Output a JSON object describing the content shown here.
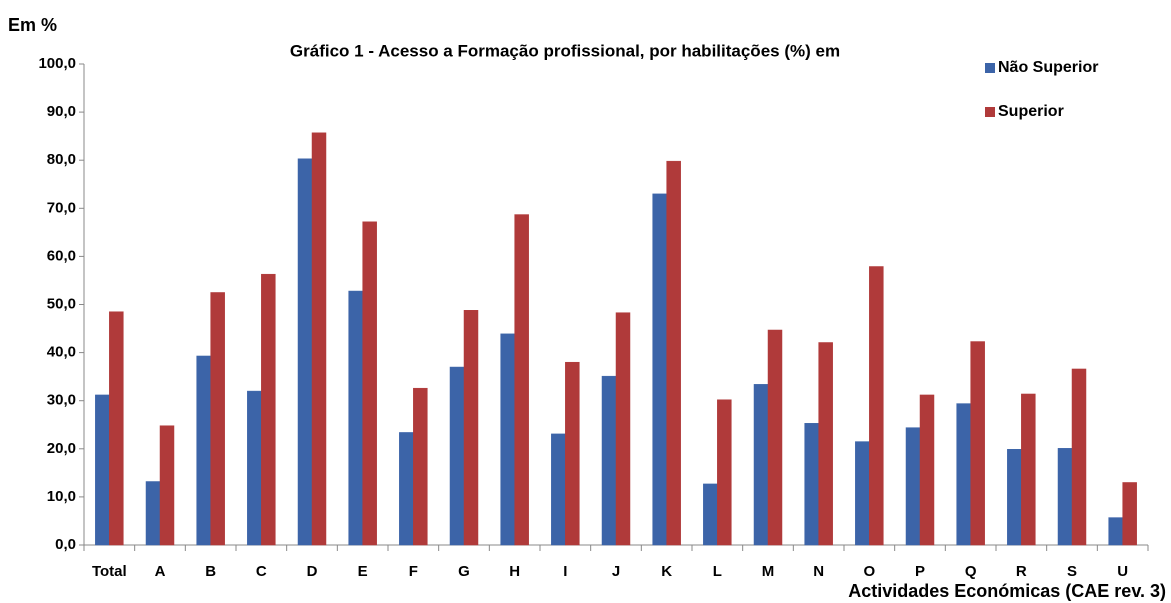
{
  "chart_data": {
    "type": "bar",
    "title": "Gráfico 1 - Acesso a Formação profissional, por habilitações (%) em",
    "y_label": "Em %",
    "x_label": "Actividades Económicas (CAE rev. 3)",
    "categories": [
      "Total",
      "A",
      "B",
      "C",
      "D",
      "E",
      "F",
      "G",
      "H",
      "I",
      "J",
      "K",
      "L",
      "M",
      "N",
      "O",
      "P",
      "Q",
      "R",
      "S",
      "U"
    ],
    "series": [
      {
        "name": "Não Superior",
        "color": "#3c64a8",
        "values": [
          31.2,
          13.2,
          39.3,
          32.0,
          80.3,
          52.8,
          23.4,
          37.0,
          43.9,
          23.1,
          35.1,
          73.0,
          12.7,
          33.4,
          25.3,
          21.5,
          24.4,
          29.4,
          19.9,
          20.1,
          5.7
        ]
      },
      {
        "name": "Superior",
        "color": "#b03a3a",
        "values": [
          48.5,
          24.8,
          52.5,
          56.3,
          85.7,
          67.2,
          32.6,
          48.8,
          68.7,
          38.0,
          48.3,
          79.8,
          30.2,
          44.7,
          42.1,
          57.9,
          31.2,
          42.3,
          31.4,
          36.6,
          13.0
        ]
      }
    ],
    "ylim": [
      0,
      100
    ],
    "yticks": [
      {
        "value": 0,
        "label": "0,0"
      },
      {
        "value": 10,
        "label": "10,0"
      },
      {
        "value": 20,
        "label": "20,0"
      },
      {
        "value": 30,
        "label": "30,0"
      },
      {
        "value": 40,
        "label": "40,0"
      },
      {
        "value": 50,
        "label": "50,0"
      },
      {
        "value": 60,
        "label": "60,0"
      },
      {
        "value": 70,
        "label": "70,0"
      },
      {
        "value": 80,
        "label": "80,0"
      },
      {
        "value": 90,
        "label": "90,0"
      },
      {
        "value": 100,
        "label": "100,0"
      }
    ],
    "grid": false,
    "legend": "top-right"
  }
}
